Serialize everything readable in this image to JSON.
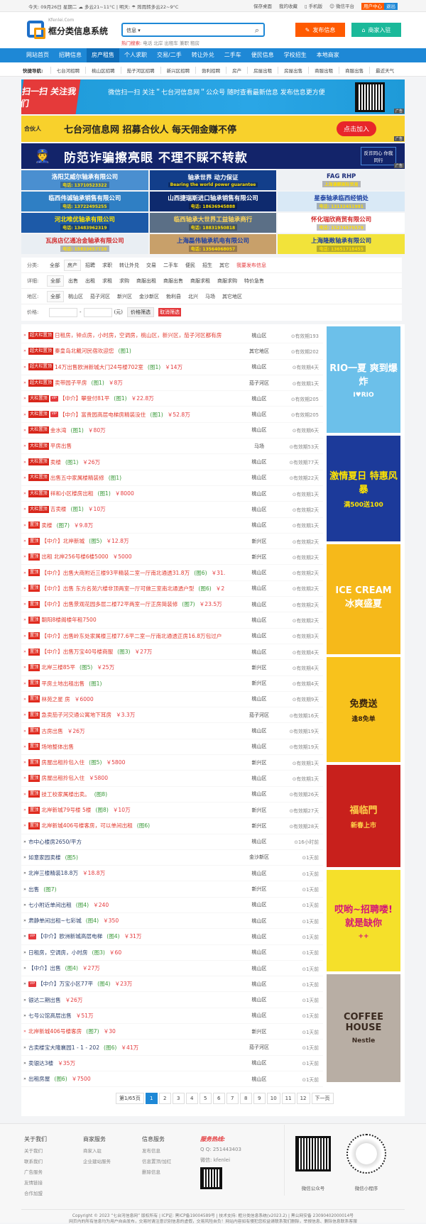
{
  "topbar": {
    "today": "今天: 09月26日 星期二 ☁ 多云21~11°C | 明天: ☂ 阵雨转多云22~9°C",
    "links": [
      "保存桌面",
      "我的收藏",
      "手机版",
      "微信平台"
    ],
    "user_center": "用户中心",
    "logout": "退出"
  },
  "header": {
    "logo_domain": "Kfenlei.Com",
    "logo_name": "框分类信息系统",
    "search_select": "信息 ▾",
    "search_placeholder": "",
    "hot_label": "热门搜索:",
    "hot_words": "电话 北岸 出租车 兼职 租房",
    "publish": "发布信息",
    "merchant": "商家入驻"
  },
  "nav": [
    "网站首页",
    "招聘信息",
    "房产租售",
    "个人求职",
    "交易/二手",
    "转让外兑",
    "二手车",
    "便民信息",
    "学校招生",
    "本地商家"
  ],
  "quick": {
    "label": "快捷导航:",
    "items": [
      "七台河招聘",
      "桃山区招聘",
      "茄子河区招聘",
      "新兴区招聘",
      "勃利招聘",
      "房产",
      "房屋出租",
      "房屋出售",
      "商服出租",
      "商服出售",
      "最近天气"
    ]
  },
  "banners": [
    {
      "text": "微信扫一扫 关注＂七台河信息网＂公众号 随时查看最新信息 发布信息更方便",
      "left": "扫一扫 关注我们",
      "tag": "广告"
    },
    {
      "text": "七台河信息网 招募合伙人  每天佣金赚不停",
      "left": "合伙人",
      "button": "点击加入",
      "tag": "广告"
    },
    {
      "text": "防范诈骗擦亮眼  不理不睬不转款",
      "right": "反诈同心 你我同行",
      "tag": "广告"
    }
  ],
  "ad_grid": [
    {
      "name": "洛阳艾威尔轴承有限公司",
      "phone": "电话: 13710523322"
    },
    {
      "name": "轴承世界 动力保证",
      "phone": "Bearing the world power guarantee"
    },
    {
      "name": "FAG RHP",
      "phone": "上海谦麒国际贸易"
    },
    {
      "name": "临西伟诚轴承销售有限公司",
      "phone": "电话: 13722495255"
    },
    {
      "name": "山西捷瑞斯进口轴承销售有限公司",
      "phone": "电话: 18636945888"
    },
    {
      "name": "星泰轴承临西经销处",
      "phone": "电话: 13132451991"
    },
    {
      "name": "河北唯优轴承有限公司",
      "phone": "电话: 13483962319"
    },
    {
      "name": "临西轴承大世界工益轴承商行",
      "phone": "电话: 18831950818"
    },
    {
      "name": "怀化瑞欣商贸有限公司",
      "phone": "电话: 15274575579"
    },
    {
      "name": "瓦房店亿通冶金轴承有限公司",
      "phone": "电话: 15833657728"
    },
    {
      "name": "上海磊伟轴承机电有限公司",
      "phone": "电话: 13564068057"
    },
    {
      "name": "上海隆敞轴承有限公司",
      "phone": "电话: 13651718455"
    }
  ],
  "filter": {
    "category": {
      "label": "分类:",
      "options": [
        "全部",
        "房产",
        "招聘",
        "求职",
        "转让外兑",
        "交易",
        "二手车",
        "便民",
        "招生",
        "其它"
      ],
      "selected": "房产",
      "publish": "我要发布信息"
    },
    "detail": {
      "label": "详细:",
      "options": [
        "全部",
        "出售",
        "出租",
        "求租",
        "求购",
        "商服出租",
        "商服出售",
        "商服求租",
        "商服求购",
        "特价急售"
      ],
      "selected": "全部"
    },
    "region": {
      "label": "地区:",
      "options": [
        "全部",
        "桃山区",
        "茄子河区",
        "新兴区",
        "金沙新区",
        "勃利县",
        "北兴",
        "马场",
        "其它地区"
      ],
      "selected": "全部"
    },
    "price": {
      "label": "价格:",
      "min": "",
      "max": "",
      "unit": "(元)",
      "filter_btn": "价格筛选",
      "cancel": "取消筛选"
    }
  },
  "listings": [
    {
      "badge": "超大栏置顶",
      "title": "日租房，钟点房，小时房，空调房，桃山区，新兴区，茄子河区都有房",
      "area": "桃山区",
      "time": "有效期193"
    },
    {
      "badge": "超大栏置顶",
      "title": "秦皇岛北戴河民宿欢迎您",
      "pic": "(图1)",
      "area": "其它地区",
      "time": "有效期202"
    },
    {
      "badge": "超大栏置顶",
      "title": "14万出售欧洲新城大门24号楼702室",
      "pic": "(图1)",
      "price": "￥14万",
      "area": "桃山区",
      "time": "有效期4天"
    },
    {
      "badge": "超大栏置顶",
      "title": "卖带园子平房",
      "pic": "(图1)",
      "price": "￥8万",
      "area": "茄子河区",
      "time": "有效期1天"
    },
    {
      "badge": "大栏置顶",
      "vip": true,
      "title": "【中介】攀登付81平",
      "pic": "(图1)",
      "price": "￥22.8万",
      "area": "桃山区",
      "time": "有效期205"
    },
    {
      "badge": "大栏置顶",
      "vip": true,
      "title": "【中介】富贵园高层电梯房精装没住",
      "pic": "(图1)",
      "price": "￥52.8万",
      "area": "桃山区",
      "time": "有效期205"
    },
    {
      "badge": "大栏置顶",
      "title": "金水湾",
      "pic": "(图1)",
      "price": "￥80万",
      "area": "桃山区",
      "time": "有效期6天"
    },
    {
      "badge": "大栏置顶",
      "title": "平房出售",
      "area": "马场",
      "time": "有效期53天"
    },
    {
      "badge": "大栏置顶",
      "title": "卖楼",
      "pic": "(图1)",
      "price": "￥26万",
      "area": "桃山区",
      "time": "有效期77天"
    },
    {
      "badge": "大栏置顶",
      "title": "出售五中家属楼精装修",
      "pic": "(图1)",
      "area": "桃山区",
      "time": "有效期22天"
    },
    {
      "badge": "大栏置顶",
      "title": "祥和小区楼房出租",
      "pic": "(图1)",
      "price": "￥8000",
      "area": "桃山区",
      "time": "有效期1天"
    },
    {
      "badge": "大栏置顶",
      "title": "吉卖楼",
      "pic": "(图1)",
      "price": "￥10万",
      "area": "桃山区",
      "time": "有效期2天"
    },
    {
      "badge": "置顶",
      "title": "卖楼",
      "pic": "(图7)",
      "price": "￥9.8万",
      "area": "桃山区",
      "time": "有效期1天"
    },
    {
      "badge": "置顶",
      "title": "【中介】北岸新城",
      "pic": "(图5)",
      "price": "￥12.8万",
      "area": "新兴区",
      "time": "有效期2天"
    },
    {
      "badge": "置顶",
      "title": "出租 北岸256号楼6楼5000",
      "price": "￥5000",
      "area": "新兴区",
      "time": "有效期2天"
    },
    {
      "badge": "置顶",
      "title": "【中介】出售大商附近三楼93平精装二室一厅南北通透31.8万",
      "pic": "(图6)",
      "price": "￥31.",
      "area": "桃山区",
      "time": "有效期2天"
    },
    {
      "badge": "置顶",
      "title": "【中介】出售 东方名苑六楼非顶两室一厅可做三室南北通透户型",
      "pic": "(图6)",
      "price": "￥2",
      "area": "桃山区",
      "time": "有效期2天"
    },
    {
      "badge": "置顶",
      "title": "【中介】出售景观花园多层二楼72平两室一厅正房简装修",
      "pic": "(图7)",
      "price": "￥23.5万",
      "area": "桃山区",
      "time": "有效期2天"
    },
    {
      "badge": "置顶",
      "title": "朝阳8楼阁楼年租7500",
      "area": "桃山区",
      "time": "有效期2天"
    },
    {
      "badge": "置顶",
      "title": "【中介】出售岭东处家属楼三楼77.6平二室一厅南北通透正房16.8万包过户",
      "area": "桃山区",
      "time": "有效期3天"
    },
    {
      "badge": "置顶",
      "title": "【中介】出售万宝40号楼商服",
      "pic": "(图3)",
      "price": "￥27万",
      "area": "桃山区",
      "time": "有效期4天"
    },
    {
      "badge": "置顶",
      "title": "北岸三楼85平",
      "pic": "(图5)",
      "price": "￥25万",
      "area": "新兴区",
      "time": "有效期4天"
    },
    {
      "badge": "置顶",
      "title": "平房土地出租出售",
      "pic": "(图1)",
      "area": "新兴区",
      "time": "有效期4天"
    },
    {
      "badge": "置顶",
      "title": "林苑之星 房",
      "price": "￥6000",
      "area": "桃山区",
      "time": "有效期9天"
    },
    {
      "badge": "置顶",
      "title": "急卖茄子河交通公寓地下耳房",
      "price": "￥3.3万",
      "area": "茄子河区",
      "time": "有效期16天"
    },
    {
      "badge": "置顶",
      "title": "古房出售",
      "price": "￥26万",
      "area": "桃山区",
      "time": "有效期19天"
    },
    {
      "badge": "置顶",
      "title": "场地整体出售",
      "area": "桃山区",
      "time": "有效期19天"
    },
    {
      "badge": "置顶",
      "title": "房屋出租拎包入住",
      "pic": "(图5)",
      "price": "￥5800",
      "area": "新兴区",
      "time": "有效期1天"
    },
    {
      "badge": "置顶",
      "title": "房屋出租拎包入住",
      "price": "￥5800",
      "area": "桃山区",
      "time": "有效期1天"
    },
    {
      "badge": "置顶",
      "title": "技工校家属楼出卖。",
      "pic": "(图8)",
      "area": "桃山区",
      "time": "有效期26天"
    },
    {
      "badge": "置顶",
      "title": "北岸新城79号楼 5楼",
      "pic": "(图8)",
      "price": "￥10万",
      "area": "新兴区",
      "time": "有效期27天"
    },
    {
      "badge": "置顶",
      "title": "北岸新城406号楼客房，可以单间出租",
      "pic": "(图6)",
      "area": "新兴区",
      "time": "有效期28天"
    },
    {
      "title": "市中心楼房2650/平方",
      "area": "桃山区",
      "time": "16小时前"
    },
    {
      "title": "如意家园卖楼",
      "pic": "(图5)",
      "area": "金沙新区",
      "time": "1天前"
    },
    {
      "title": "北岸三楼精装18.8万",
      "price": "￥18.8万",
      "area": "桃山区",
      "time": "1天前"
    },
    {
      "title": "出售",
      "pic": "(图7)",
      "area": "新兴区",
      "time": "1天前"
    },
    {
      "title": "七小附近单间出租",
      "pic": "(图4)",
      "price": "￥240",
      "area": "桃山区",
      "time": "1天前"
    },
    {
      "title": "肃静单间出租~七彩城",
      "pic": "(图4)",
      "price": "￥350",
      "area": "桃山区",
      "time": "1天前"
    },
    {
      "vip": true,
      "title": "【中介】欧洲新城高层电梯",
      "pic": "(图4)",
      "price": "￥31万",
      "area": "桃山区",
      "time": "1天前"
    },
    {
      "title": "日租房，空调房，小时房",
      "pic": "(图3)",
      "price": "￥60",
      "area": "桃山区",
      "time": "1天前"
    },
    {
      "title": "【中介】出售",
      "pic": "(图4)",
      "price": "￥27万",
      "area": "桃山区",
      "time": "1天前"
    },
    {
      "vip": true,
      "title": "【中介】万宝小区77平",
      "pic": "(图4)",
      "price": "￥23万",
      "area": "桃山区",
      "time": "1天前"
    },
    {
      "title": "银达二期出售",
      "price": "￥26万",
      "area": "桃山区",
      "time": "1天前"
    },
    {
      "title": "七号公馆高层出售",
      "price": "￥51万",
      "area": "桃山区",
      "time": "1天前"
    },
    {
      "title": "北岸新城406号楼客房",
      "pic": "(图7)",
      "price": "￥30",
      "area": "新兴区",
      "time": "1天前",
      "red": true
    },
    {
      "title": "古卖楼宝大隆襄园1 - 1 - 202",
      "pic": "(图6)",
      "price": "￥41万",
      "area": "茄子河区",
      "time": "1天前"
    },
    {
      "title": "卖银达3楼",
      "price": "￥35万",
      "area": "桃山区",
      "time": "1天前"
    },
    {
      "title": "出租房屋",
      "pic": "(图6)",
      "price": "￥7500",
      "area": "桃山区",
      "time": "1天前"
    }
  ],
  "side_ads": [
    {
      "text": "RIO一夏 爽到爆炸",
      "sub": "I♥RIO",
      "bg": "#6cc0ea",
      "fg": "#ffffff",
      "h": 150
    },
    {
      "text": "激情夏日 特惠风暴",
      "sub": "满500送100",
      "bg": "#1c3a9a",
      "fg": "#ffe400",
      "h": 149
    },
    {
      "text": "ICE CREAM 冰爽盛夏",
      "sub": "",
      "bg": "#f6b91a",
      "fg": "#ffffff",
      "h": 155
    },
    {
      "text": "免费送",
      "sub": "逢8免单",
      "bg": "#f8c21c",
      "fg": "#3a2410",
      "h": 148
    },
    {
      "text": "福临門",
      "sub": "新春上市",
      "bg": "#c8201c",
      "fg": "#ffd34a",
      "h": 144
    },
    {
      "text": "哎哟~招聘喽! 就是缺你",
      "sub": "++",
      "bg": "#f5e02a",
      "fg": "#d4127a",
      "h": 143
    },
    {
      "text": "COFFEE HOUSE",
      "sub": "Nestle",
      "bg": "#b8aea4",
      "fg": "#3a2a20",
      "h": 152
    }
  ],
  "pager": {
    "info": "第1/65页",
    "pages": [
      "1",
      "2",
      "3",
      "4",
      "5",
      "6",
      "7",
      "8",
      "9",
      "10",
      "11",
      "12"
    ],
    "current": "1",
    "next": "下一页"
  },
  "footer": {
    "cols": [
      {
        "title": "关于我们",
        "links": [
          "关于我们",
          "联系我们",
          "广告服务",
          "友情链接",
          "合作加盟"
        ]
      },
      {
        "title": "商家服务",
        "links": [
          "商家入驻",
          "企业建站服务"
        ]
      },
      {
        "title": "信息服务",
        "links": [
          "发布信息",
          "信息置顶/加红",
          "删除信息"
        ]
      }
    ],
    "hotline": "服务热线:",
    "qq": "Q Q:  251443403",
    "wechat": "微信:  kfenlei",
    "qr1": "微信公众号",
    "qr2": "微信小程序",
    "copyright": "Copyright © 2023 “七台河信息网” 版权所有 | ICP证: 黑ICP备19004589号 | 技术支持: 框分类信息系统(v2023.2) | 黑公网安备 23090402000014号",
    "disclaimer": "网页内的所有信息均为用户自由发布，交易时请注意识别信息的虚假，交易风险自负！网站内容如有侵犯您权益请联系我们删除，举报信息、删除信息联系客服"
  },
  "colors": {
    "brand": "#1e88d6",
    "publish": "#ff5a00",
    "merchant": "#1bb99a",
    "highlight": "#e4393c"
  }
}
